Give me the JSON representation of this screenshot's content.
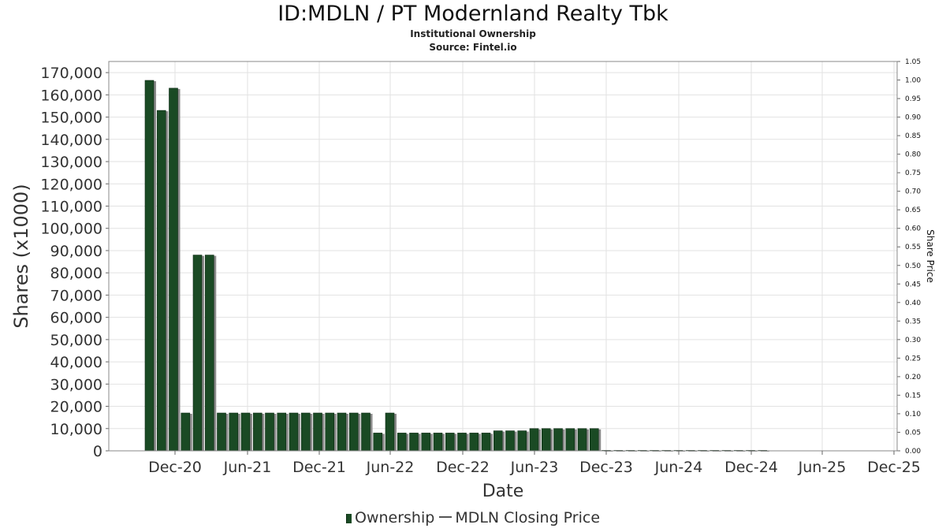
{
  "chart_data": {
    "type": "bar",
    "title": "ID:MDLN / PT Modernland Realty Tbk",
    "subtitle_1": "Institutional Ownership",
    "subtitle_2": "Source: Fintel.io",
    "xlabel": "Date",
    "ylabel": "Shares (x1000)",
    "y2label": "Share Price",
    "ylim": [
      0,
      175000
    ],
    "y2lim": [
      0,
      1.05
    ],
    "x_ticks": [
      "Dec-20",
      "Jun-21",
      "Dec-21",
      "Jun-22",
      "Dec-22",
      "Jun-23",
      "Dec-23",
      "Jun-24",
      "Dec-24",
      "Jun-25",
      "Dec-25"
    ],
    "y_ticks": [
      "0",
      "10,000",
      "20,000",
      "30,000",
      "40,000",
      "50,000",
      "60,000",
      "70,000",
      "80,000",
      "90,000",
      "100,000",
      "110,000",
      "120,000",
      "130,000",
      "140,000",
      "150,000",
      "160,000",
      "170,000"
    ],
    "y2_ticks": [
      "0.00",
      "0.05",
      "0.10",
      "0.15",
      "0.20",
      "0.25",
      "0.30",
      "0.35",
      "0.40",
      "0.45",
      "0.50",
      "0.55",
      "0.60",
      "0.65",
      "0.70",
      "0.75",
      "0.80",
      "0.85",
      "0.90",
      "0.95",
      "1.00",
      "1.05"
    ],
    "grid": true,
    "legend_position": "bottom",
    "series": [
      {
        "name": "Ownership",
        "color": "#1a4a24",
        "values": [
          166500,
          153000,
          163000,
          17000,
          88000,
          88000,
          17000,
          17000,
          17000,
          17000,
          17000,
          17000,
          17000,
          17000,
          17000,
          17000,
          17000,
          17000,
          17000,
          8000,
          17000,
          8000,
          8000,
          8000,
          8000,
          8000,
          8000,
          8000,
          8000,
          9000,
          9000,
          9000,
          10000,
          10000,
          10000,
          10000,
          10000,
          10000,
          200,
          200,
          200,
          200,
          200,
          200,
          200,
          200,
          200,
          200,
          200,
          200,
          200,
          200
        ]
      },
      {
        "name": "MDLN Closing Price",
        "color": "#555555",
        "values": []
      }
    ]
  },
  "legend": {
    "ownership_label": "Ownership",
    "price_label": "MDLN Closing Price"
  }
}
